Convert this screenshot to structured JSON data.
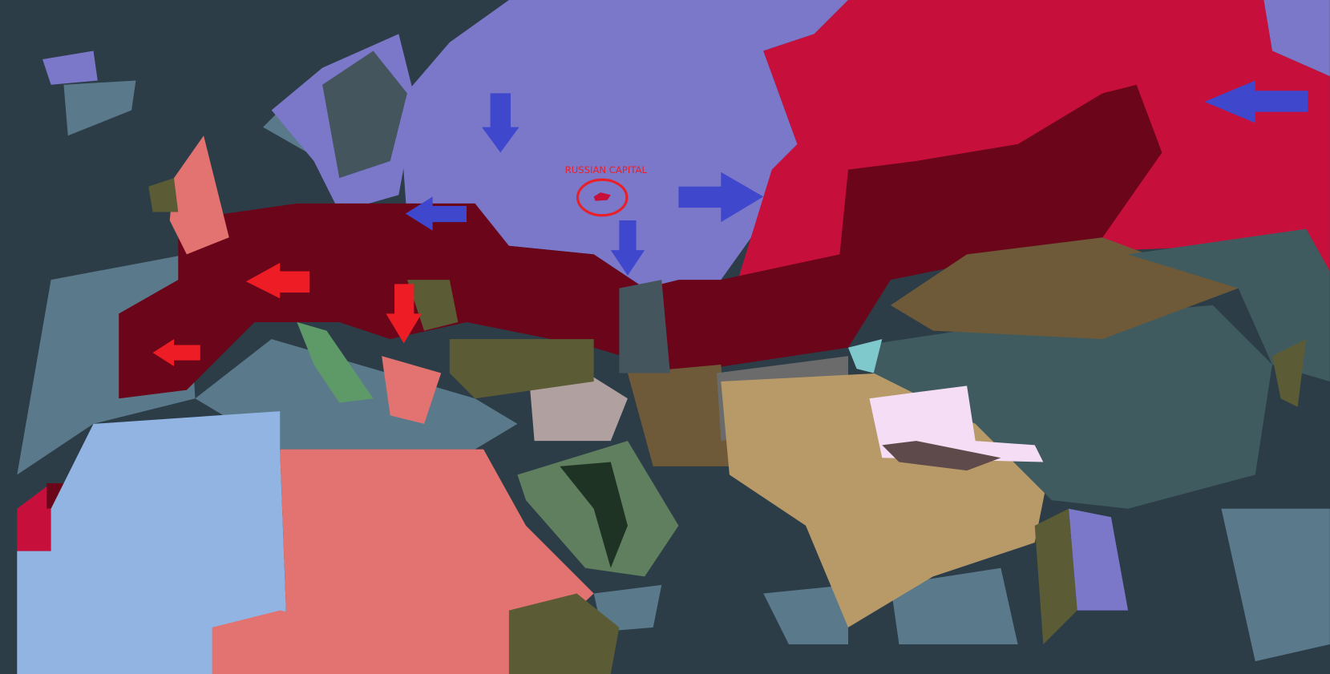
{
  "annotation": {
    "label": "RUSSIAN CAPITAL",
    "label_color": "#e8202a",
    "circle_color": "#e8202a"
  },
  "colors": {
    "ocean": "#2c3d48",
    "sea_zone": "#5a7a8b",
    "coastal": "#7fc8cc",
    "russia_west": "#7b77c9",
    "soviet_east": "#c70f3b",
    "axis_maroon": "#6b0519",
    "north_africa": "#91b4e3",
    "salmon": "#e27370",
    "arabia": "#5f7f5f",
    "arabia_dark": "#1f3325",
    "olive": "#5b5b35",
    "iran": "#6e5a38",
    "afghanistan": "#6b6b6b",
    "india": "#b89a68",
    "tibet": "#f4ddf5",
    "china": "#3f5b5f",
    "mongolia": "#6e5a38",
    "italy": "#5e9a68",
    "scandinavia": "#44555e",
    "arrow_red": "#ee1c24",
    "arrow_blue": "#3f48cc"
  },
  "arrows": [
    {
      "color": "blue",
      "direction": "down"
    },
    {
      "color": "blue",
      "direction": "left"
    },
    {
      "color": "blue",
      "direction": "right"
    },
    {
      "color": "blue",
      "direction": "down"
    },
    {
      "color": "blue",
      "direction": "left"
    },
    {
      "color": "red",
      "direction": "left"
    },
    {
      "color": "red",
      "direction": "down"
    },
    {
      "color": "red",
      "direction": "left"
    }
  ]
}
